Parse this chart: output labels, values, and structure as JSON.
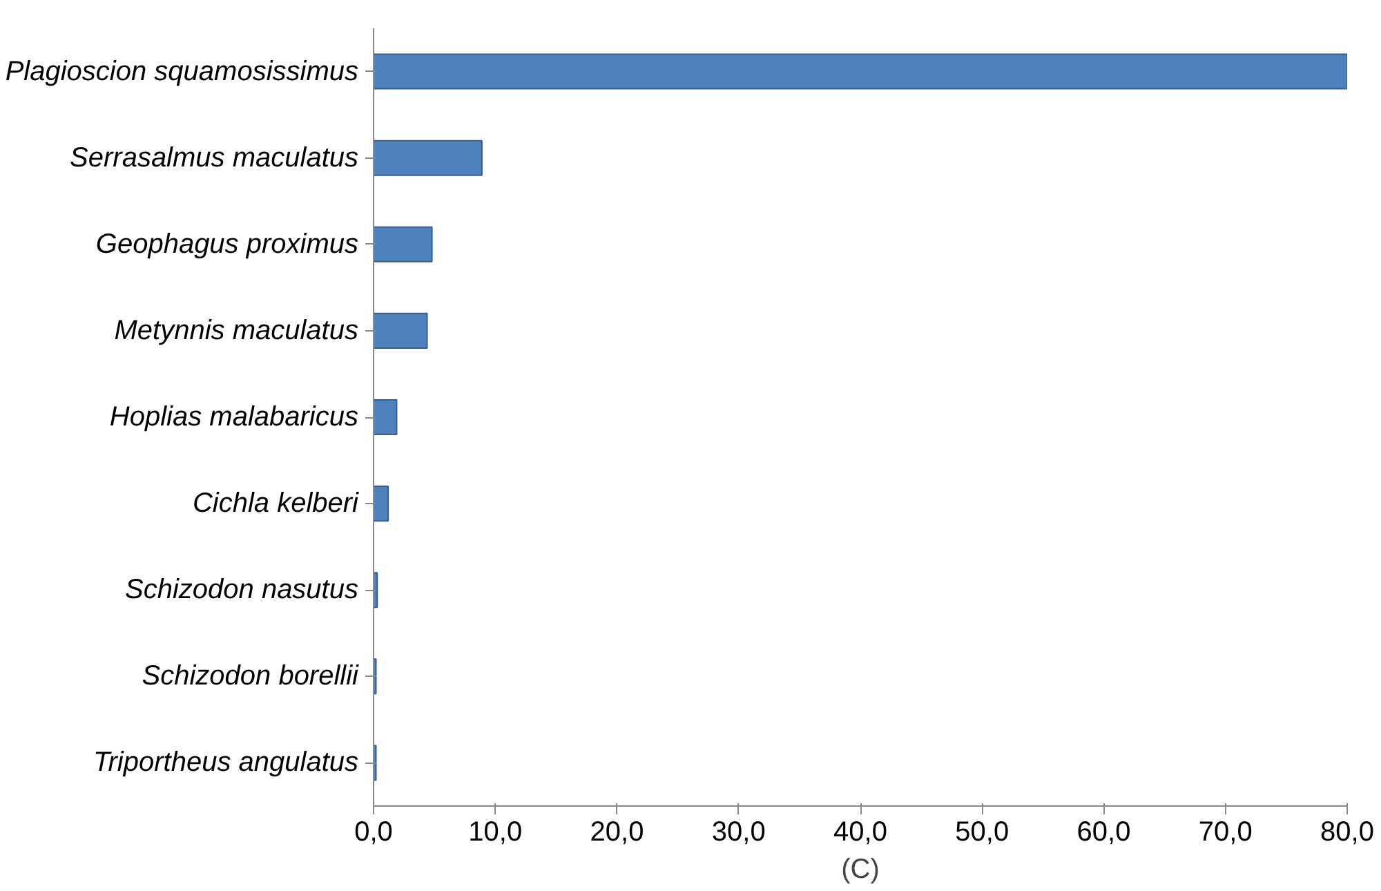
{
  "chart_data": {
    "type": "bar",
    "orientation": "horizontal",
    "categories": [
      "Plagioscion squamosissimus",
      "Serrasalmus maculatus",
      "Geophagus proximus",
      "Metynnis maculatus",
      "Hoplias malabaricus",
      "Cichla kelberi",
      "Schizodon nasutus",
      "Schizodon borellii",
      "Triportheus angulatus"
    ],
    "values": [
      80.0,
      8.9,
      4.8,
      4.4,
      1.9,
      1.2,
      0.3,
      0.2,
      0.2
    ],
    "color": "#4f81bd",
    "xlim": [
      0,
      80
    ],
    "xticks": [
      {
        "value": 0,
        "label": "0,0"
      },
      {
        "value": 10,
        "label": "10,0"
      },
      {
        "value": 20,
        "label": "20,0"
      },
      {
        "value": 30,
        "label": "30,0"
      },
      {
        "value": 40,
        "label": "40,0"
      },
      {
        "value": 50,
        "label": "50,0"
      },
      {
        "value": 60,
        "label": "60,0"
      },
      {
        "value": 70,
        "label": "70,0"
      },
      {
        "value": 80,
        "label": "80,0"
      }
    ],
    "grid": false,
    "annotations": [
      "(C)"
    ]
  }
}
